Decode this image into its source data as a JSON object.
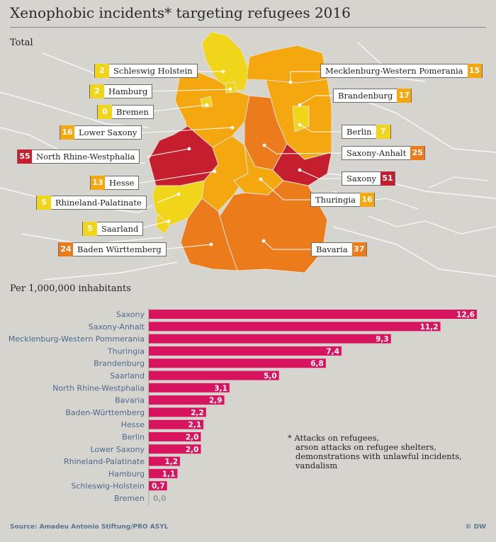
{
  "title": "Xenophobic incidents* targeting refugees 2016",
  "map_subtitle": "Total",
  "bar_subtitle": "Per 1,000,000 inhabitants",
  "footnote": "* Attacks on refugees,\n   arson attacks on refugee shelters,\n   demonstrations with unlawful incidents,\n   vandalism",
  "source": "Source: Amadeu Antonio Stiftung/PRO ASYL",
  "copyright": "© DW",
  "colors": {
    "level_low": "#f1d51a",
    "level_mid": "#f4a70f",
    "level_high": "#ec7b1c",
    "level_top": "#c51f2f",
    "bar": "#d9145f"
  },
  "chart_data": [
    {
      "type": "map",
      "title": "Total",
      "regions": [
        {
          "name": "Schleswig Holstein",
          "value": 2,
          "color": "#f1d51a"
        },
        {
          "name": "Hamburg",
          "value": 2,
          "color": "#f1d51a"
        },
        {
          "name": "Bremen",
          "value": 0,
          "color": "#f1d51a"
        },
        {
          "name": "Lower Saxony",
          "value": 16,
          "color": "#f4a70f"
        },
        {
          "name": "North Rhine-Westphalia",
          "value": 55,
          "color": "#c51f2f"
        },
        {
          "name": "Hesse",
          "value": 13,
          "color": "#f4a70f"
        },
        {
          "name": "Rhineland-Palatinate",
          "value": 5,
          "color": "#f1d51a"
        },
        {
          "name": "Saarland",
          "value": 5,
          "color": "#f1d51a"
        },
        {
          "name": "Baden Württemberg",
          "value": 24,
          "color": "#ec7b1c"
        },
        {
          "name": "Mecklenburg-Western Pomerania",
          "value": 15,
          "color": "#f4a70f"
        },
        {
          "name": "Brandenburg",
          "value": 17,
          "color": "#f4a70f"
        },
        {
          "name": "Berlin",
          "value": 7,
          "color": "#f1d51a"
        },
        {
          "name": "Saxony-Anhalt",
          "value": 25,
          "color": "#ec7b1c"
        },
        {
          "name": "Saxony",
          "value": 51,
          "color": "#c51f2f"
        },
        {
          "name": "Thuringia",
          "value": 16,
          "color": "#f4a70f"
        },
        {
          "name": "Bavaria",
          "value": 37,
          "color": "#ec7b1c"
        }
      ]
    },
    {
      "type": "bar",
      "orientation": "horizontal",
      "title": "Per 1,000,000 inhabitants",
      "categories": [
        "Saxony",
        "Saxony-Anhalt",
        "Mecklenburg-Western Pommerania",
        "Thuringia",
        "Brandenburg",
        "Saarland",
        "North Rhine-Westphalia",
        "Bavaria",
        "Baden-Württemberg",
        "Hesse",
        "Berlin",
        "Lower Saxony",
        "Rhineland-Palatinate",
        "Hamburg",
        "Schleswig-Holstein",
        "Bremen"
      ],
      "values": [
        12.6,
        11.2,
        9.3,
        7.4,
        6.8,
        5.0,
        3.1,
        2.9,
        2.2,
        2.1,
        2.0,
        2.0,
        1.2,
        1.1,
        0.7,
        0.0
      ],
      "value_labels": [
        "12,6",
        "11,2",
        "9,3",
        "7,4",
        "6,8",
        "5,0",
        "3,1",
        "2,9",
        "2,2",
        "2,1",
        "2,0",
        "2,0",
        "1,2",
        "1,1",
        "0,7",
        "0,0"
      ],
      "xlim": [
        0,
        12.6
      ]
    }
  ]
}
